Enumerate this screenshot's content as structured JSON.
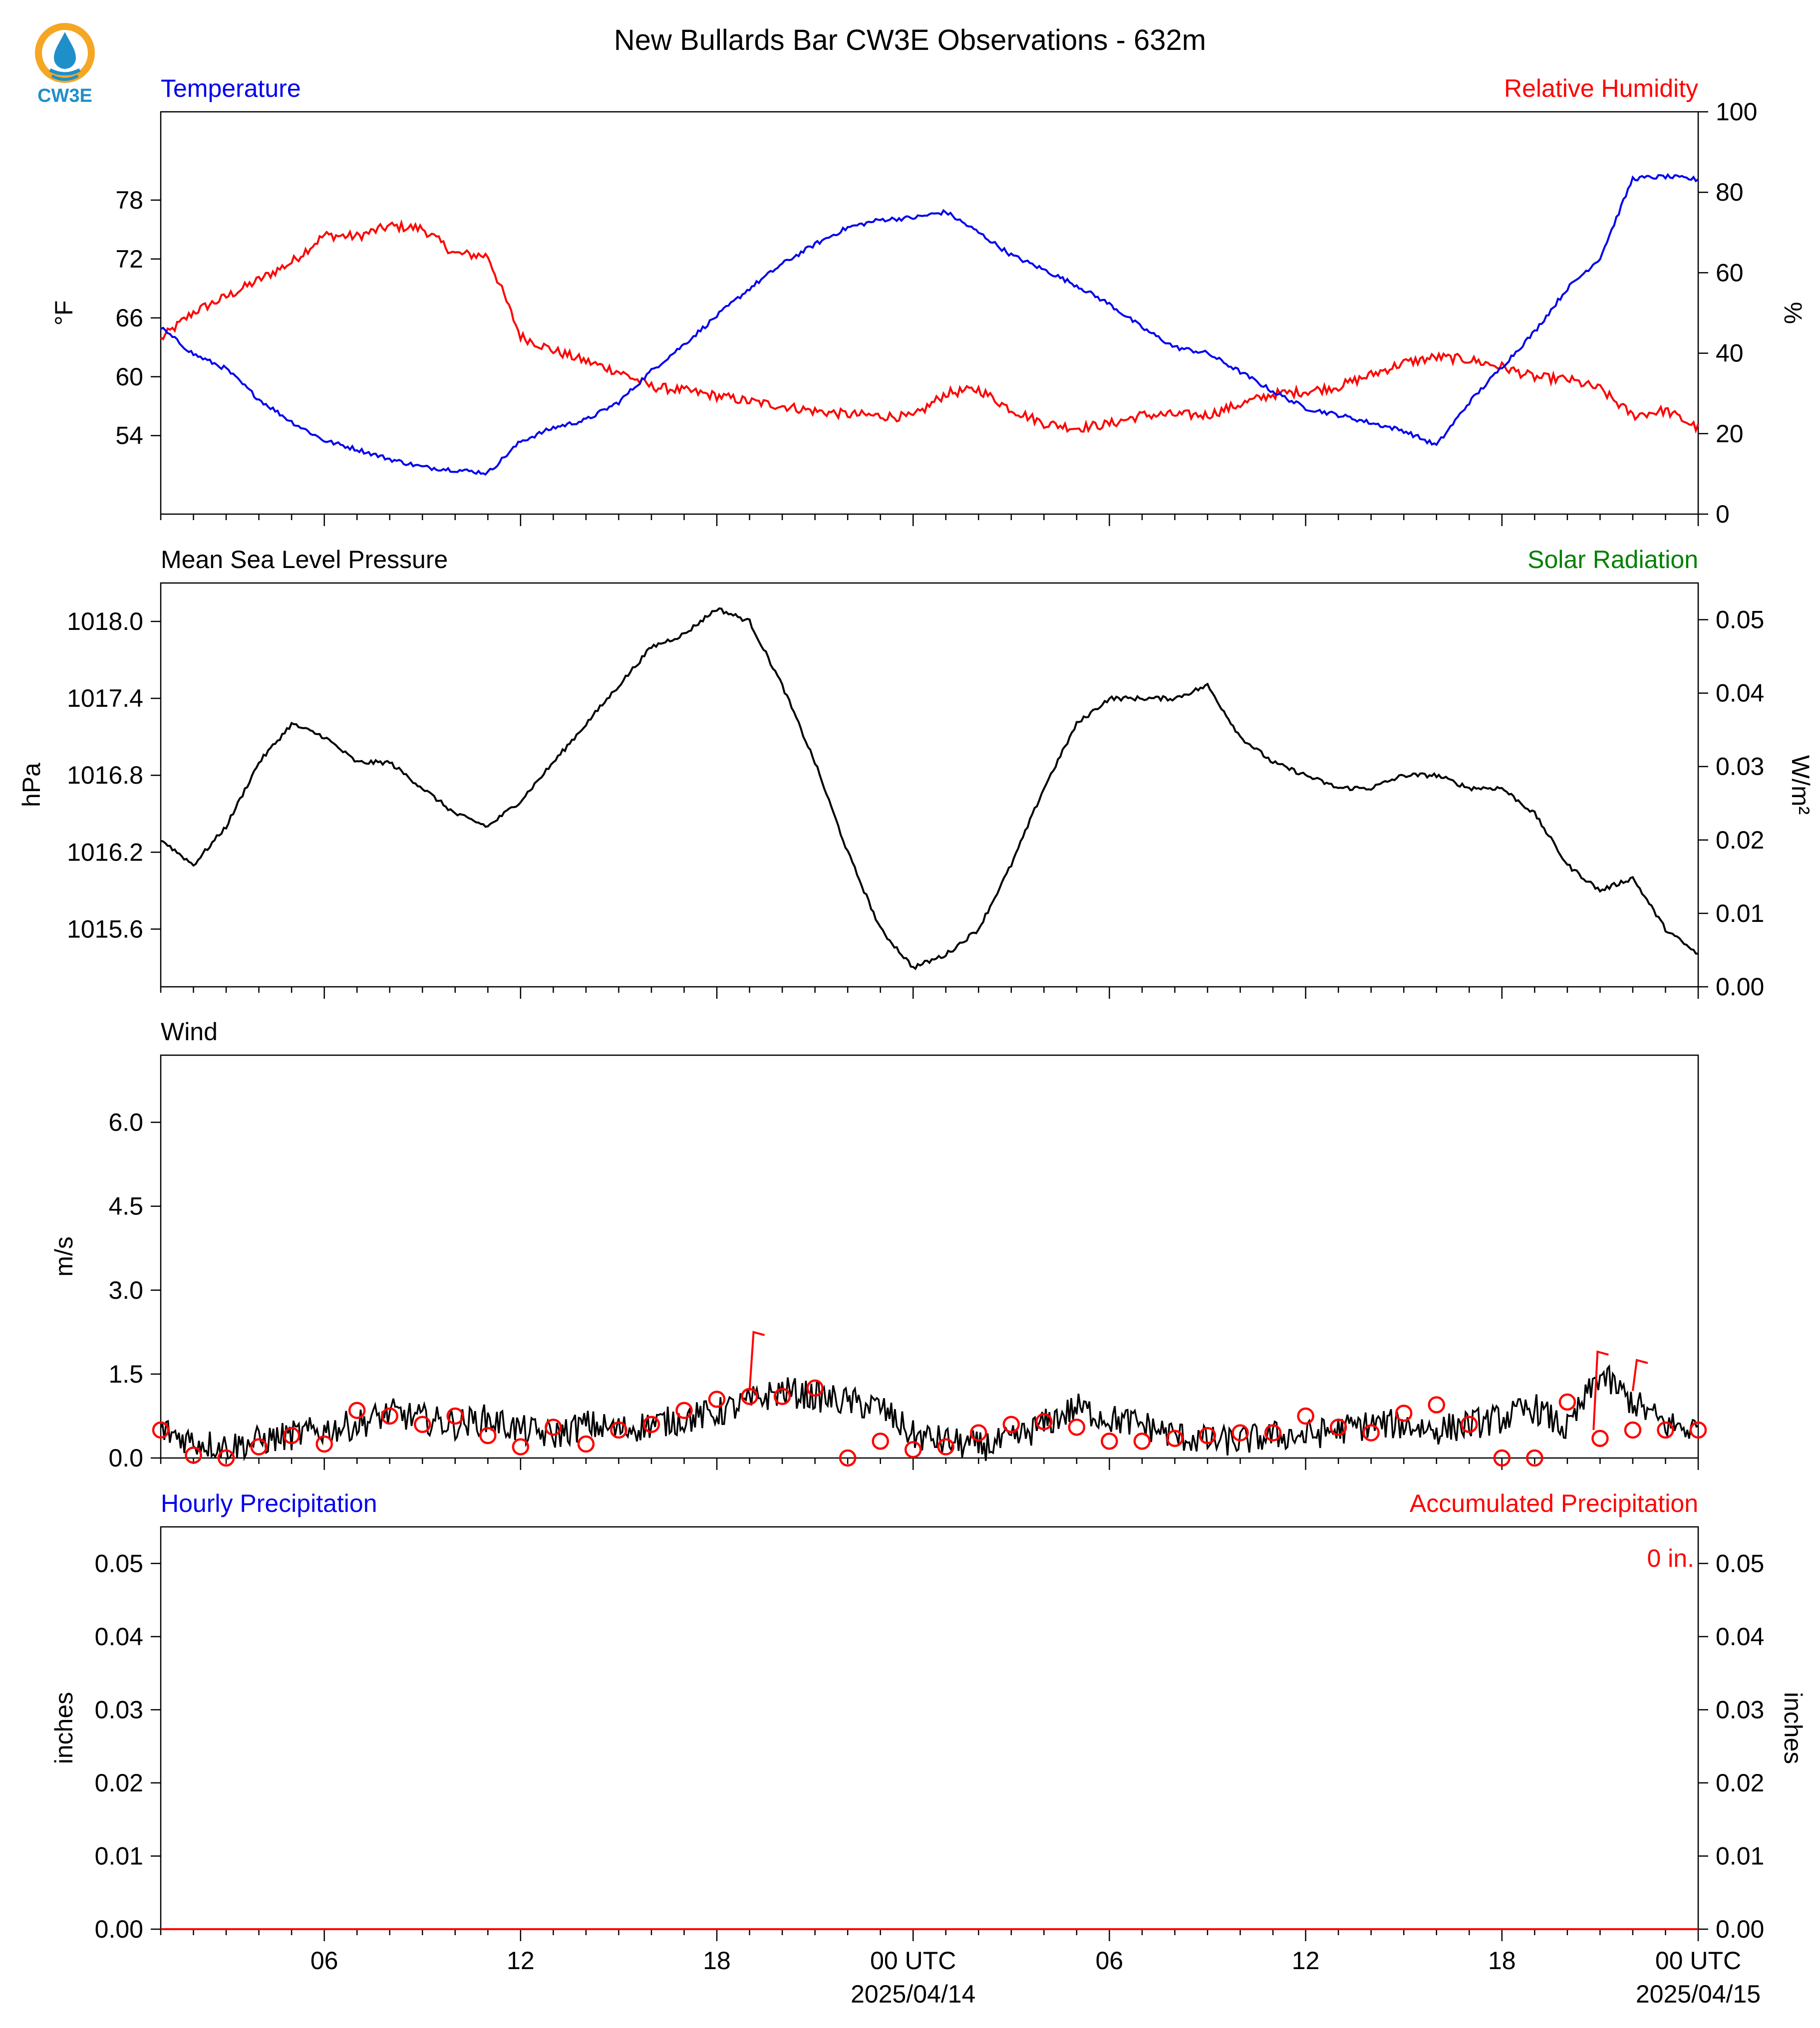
{
  "title": "New Bullards Bar CW3E Observations - 632m",
  "logo": {
    "text": "CW3E",
    "icon": "cw3e-drop-logo-icon",
    "colors": {
      "ring": "#f5a623",
      "drop": "#1f8fc9",
      "text": "#1f8fc9"
    }
  },
  "time_axis": {
    "tick_labels": [
      "06",
      "12",
      "18",
      "00 UTC",
      "06",
      "12",
      "18",
      "00 UTC"
    ],
    "date_labels": [
      "2025/04/14",
      "2025/04/15"
    ]
  },
  "chart_data": [
    {
      "type": "line",
      "left_title": "Temperature",
      "right_title": "Relative Humidity",
      "ylabel": "°F",
      "y2label": "%",
      "ylim": [
        46.0,
        87.0
      ],
      "y2lim": [
        0,
        100
      ],
      "yticks": [
        "78",
        "72",
        "66",
        "60",
        "54"
      ],
      "y2ticks": [
        "100",
        "80",
        "60",
        "40",
        "20",
        "0"
      ],
      "x_hours": [
        0,
        1,
        2,
        3,
        4,
        5,
        6,
        7,
        8,
        9,
        10,
        11,
        12,
        13,
        14,
        15,
        16,
        17,
        18,
        19,
        20,
        21,
        22,
        23,
        24,
        25,
        26,
        27,
        28,
        29,
        30,
        31,
        32,
        33,
        34,
        35,
        36,
        37,
        38,
        39,
        40,
        41,
        42,
        43,
        44,
        45,
        46,
        47
      ],
      "series": [
        {
          "name": "Temperature",
          "axis": "left",
          "color": "#0000ee",
          "values": [
            65.0,
            62.3,
            60.8,
            57.7,
            55.4,
            53.5,
            52.6,
            51.6,
            50.8,
            50.5,
            50.2,
            53.4,
            54.8,
            55.6,
            57.4,
            60.6,
            63.3,
            66.2,
            69.0,
            71.5,
            73.5,
            75.2,
            76.0,
            76.2,
            76.8,
            74.7,
            72.4,
            70.9,
            69.3,
            67.4,
            65.0,
            63.0,
            62.4,
            60.5,
            58.5,
            56.8,
            56.1,
            55.3,
            54.5,
            53.0,
            57.4,
            61.0,
            64.6,
            69.0,
            72.1,
            80.2,
            80.4,
            80.1
          ]
        },
        {
          "name": "Relative Humidity",
          "axis": "right",
          "color": "#ff0000",
          "values": [
            43.5,
            50.2,
            54.0,
            58.2,
            62.6,
            69.3,
            69.0,
            71.6,
            71.0,
            64.7,
            64.2,
            44.2,
            40.7,
            38.0,
            35.4,
            31.7,
            30.7,
            29.4,
            28.0,
            26.9,
            25.6,
            24.8,
            24.4,
            24.1,
            30.0,
            31.0,
            26.0,
            22.6,
            21.4,
            22.4,
            24.6,
            24.7,
            24.6,
            27.3,
            29.8,
            30.5,
            31.7,
            34.6,
            37.6,
            39.0,
            38.4,
            36.6,
            34.0,
            33.5,
            31.1,
            24.5,
            25.8,
            21.4
          ]
        }
      ]
    },
    {
      "type": "line",
      "left_title": "Mean Sea Level Pressure",
      "right_title": "Solar Radiation",
      "ylabel": "hPa",
      "y2label": "W/m²",
      "ylim": [
        1015.15,
        1018.3
      ],
      "y2lim": [
        0.0,
        0.055
      ],
      "yticks": [
        "1018.0",
        "1017.4",
        "1016.8",
        "1016.2",
        "1015.6"
      ],
      "y2ticks": [
        "0.05",
        "0.04",
        "0.03",
        "0.02",
        "0.01",
        "0.00"
      ],
      "x_hours": [
        0,
        1,
        2,
        3,
        4,
        5,
        6,
        7,
        8,
        9,
        10,
        11,
        12,
        13,
        14,
        15,
        16,
        17,
        18,
        19,
        20,
        21,
        22,
        23,
        24,
        25,
        26,
        27,
        28,
        29,
        30,
        31,
        32,
        33,
        34,
        35,
        36,
        37,
        38,
        39,
        40,
        41,
        42,
        43,
        44,
        45,
        46,
        47
      ],
      "series": [
        {
          "name": "Mean Sea Level Pressure",
          "axis": "left",
          "color": "#000000",
          "values": [
            1016.3,
            1016.1,
            1016.4,
            1016.9,
            1017.2,
            1017.1,
            1016.9,
            1016.9,
            1016.7,
            1016.5,
            1016.4,
            1016.6,
            1016.9,
            1017.2,
            1017.5,
            1017.8,
            1017.9,
            1018.1,
            1018.0,
            1017.5,
            1016.9,
            1016.2,
            1015.6,
            1015.3,
            1015.4,
            1015.6,
            1016.1,
            1016.7,
            1017.2,
            1017.4,
            1017.4,
            1017.4,
            1017.5,
            1017.1,
            1016.9,
            1016.8,
            1016.7,
            1016.7,
            1016.8,
            1016.8,
            1016.7,
            1016.7,
            1016.5,
            1016.1,
            1015.9,
            1016.0,
            1015.6,
            1015.4
          ]
        }
      ]
    },
    {
      "type": "line",
      "left_title": "Wind",
      "ylabel": "m/s",
      "ylim": [
        0.0,
        7.2
      ],
      "yticks": [
        "6.0",
        "4.5",
        "3.0",
        "1.5",
        "0.0"
      ],
      "x_hours": [
        0,
        1,
        2,
        3,
        4,
        5,
        6,
        7,
        8,
        9,
        10,
        11,
        12,
        13,
        14,
        15,
        16,
        17,
        18,
        19,
        20,
        21,
        22,
        23,
        24,
        25,
        26,
        27,
        28,
        29,
        30,
        31,
        32,
        33,
        34,
        35,
        36,
        37,
        38,
        39,
        40,
        41,
        42,
        43,
        44,
        45,
        46,
        47
      ],
      "series": [
        {
          "name": "Wind speed",
          "axis": "left",
          "color": "#000000",
          "values": [
            0.5,
            0.3,
            0.2,
            0.3,
            0.4,
            0.5,
            0.6,
            0.8,
            0.7,
            0.6,
            0.7,
            0.5,
            0.4,
            0.6,
            0.5,
            0.6,
            0.7,
            0.8,
            1.0,
            1.2,
            1.1,
            1.0,
            0.9,
            0.4,
            0.3,
            0.2,
            0.3,
            0.6,
            0.9,
            0.7,
            0.6,
            0.4,
            0.3,
            0.3,
            0.4,
            0.4,
            0.5,
            0.6,
            0.6,
            0.5,
            0.6,
            0.7,
            0.9,
            0.5,
            1.5,
            1.0,
            0.6,
            0.5
          ]
        },
        {
          "name": "Hourly wind marker",
          "axis": "left",
          "color": "#ff0000",
          "values": [
            0.5,
            0.05,
            0.0,
            0.2,
            0.4,
            0.25,
            0.85,
            0.75,
            0.6,
            0.75,
            0.4,
            0.2,
            0.55,
            0.25,
            0.5,
            0.6,
            0.85,
            1.05,
            1.1,
            1.1,
            1.25,
            0.0,
            0.3,
            0.15,
            0.2,
            0.45,
            0.6,
            0.65,
            0.55,
            0.3,
            0.3,
            0.35,
            0.4,
            0.45,
            0.45,
            0.75,
            0.55,
            0.45,
            0.8,
            0.95,
            0.6,
            0.0,
            0.0,
            1.0,
            0.35,
            0.5,
            0.5,
            0.5
          ]
        }
      ]
    },
    {
      "type": "line",
      "left_title": "Hourly Precipitation",
      "right_title": "Accumulated Precipitation",
      "ylabel": "inches",
      "y2label": "inches",
      "ylim": [
        0.0,
        0.055
      ],
      "y2lim": [
        0.0,
        0.055
      ],
      "yticks": [
        "0.05",
        "0.04",
        "0.03",
        "0.02",
        "0.01",
        "0.00"
      ],
      "y2ticks": [
        "0.05",
        "0.04",
        "0.03",
        "0.02",
        "0.01",
        "0.00"
      ],
      "annotation": "0 in.",
      "series": [
        {
          "name": "Hourly Precipitation",
          "axis": "left",
          "color": "#0000ee",
          "values": [
            0.0,
            0.0
          ]
        },
        {
          "name": "Accumulated Precipitation",
          "axis": "right",
          "color": "#ff0000",
          "values": [
            0.0,
            0.0
          ]
        }
      ]
    }
  ]
}
